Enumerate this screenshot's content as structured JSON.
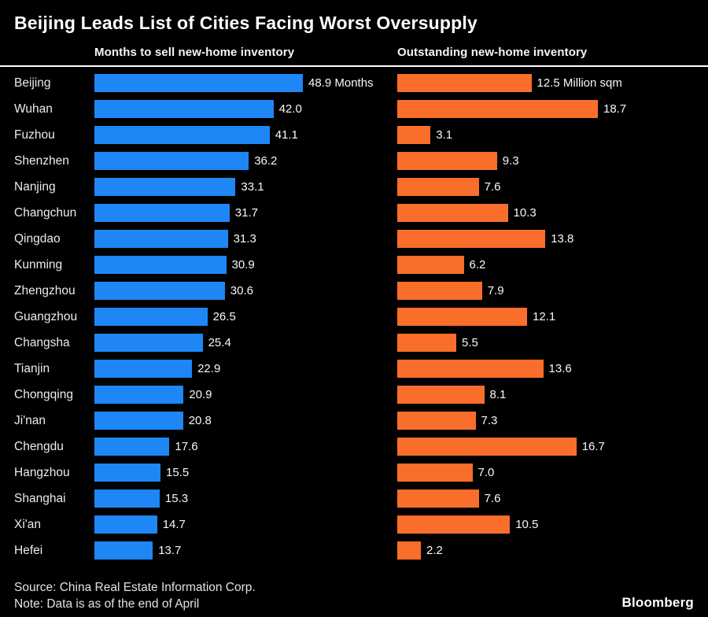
{
  "title": "Beijing Leads List of Cities Facing Worst Oversupply",
  "panels": {
    "left_header": "Months to sell new-home inventory",
    "right_header": "Outstanding new-home inventory"
  },
  "footer": {
    "source": "Source: China Real Estate Information Corp.",
    "note": "Note: Data is as of the end of April",
    "brand": "Bloomberg"
  },
  "colors": {
    "background": "#000000",
    "left_bar": "#1e86f5",
    "right_bar": "#f96e2a",
    "text": "#ffffff"
  },
  "chart_data": {
    "type": "bar",
    "orientation": "horizontal",
    "title": "Beijing Leads List of Cities Facing Worst Oversupply",
    "legend": "none",
    "grid": false,
    "categories": [
      "Beijing",
      "Wuhan",
      "Fuzhou",
      "Shenzhen",
      "Nanjing",
      "Changchun",
      "Qingdao",
      "Kunming",
      "Zhengzhou",
      "Guangzhou",
      "Changsha",
      "Tianjin",
      "Chongqing",
      "Ji'nan",
      "Chengdu",
      "Hangzhou",
      "Shanghai",
      "Xi'an",
      "Hefei"
    ],
    "series": [
      {
        "name": "Months to sell new-home inventory",
        "unit": "Months",
        "color": "#1e86f5",
        "axis_max": 48.9,
        "values": [
          48.9,
          42.0,
          41.1,
          36.2,
          33.1,
          31.7,
          31.3,
          30.9,
          30.6,
          26.5,
          25.4,
          22.9,
          20.9,
          20.8,
          17.6,
          15.5,
          15.3,
          14.7,
          13.7
        ]
      },
      {
        "name": "Outstanding new-home inventory",
        "unit": "Million sqm",
        "color": "#f96e2a",
        "axis_max": 18.7,
        "values": [
          12.5,
          18.7,
          3.1,
          9.3,
          7.6,
          10.3,
          13.8,
          6.2,
          7.9,
          12.1,
          5.5,
          13.6,
          8.1,
          7.3,
          16.7,
          7.0,
          7.6,
          10.5,
          2.2
        ]
      }
    ]
  }
}
